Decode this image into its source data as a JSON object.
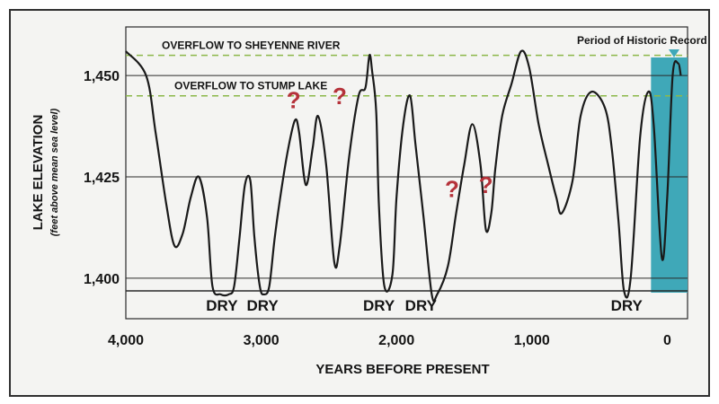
{
  "chart_data": {
    "type": "line",
    "xlabel": "YEARS BEFORE PRESENT",
    "ylabel": "LAKE ELEVATION",
    "ylabel_sub": "(feet above mean sea level)",
    "x_ticks": [
      "4,000",
      "3,000",
      "2,000",
      "1,000",
      "0"
    ],
    "x_tick_values": [
      4000,
      3000,
      2000,
      1000,
      0
    ],
    "y_ticks": [
      "1,450",
      "1,425",
      "1,400"
    ],
    "y_tick_values": [
      1450,
      1425,
      1400
    ],
    "xlim": [
      4000,
      -150
    ],
    "ylim": [
      1390,
      1462
    ],
    "grid": "horizontal",
    "reference_lines": [
      {
        "label": "OVERFLOW TO SHEYENNE RIVER",
        "y": 1455,
        "style": "dashed",
        "color": "#8cb84a"
      },
      {
        "label": "OVERFLOW TO STUMP LAKE",
        "y": 1445,
        "style": "dashed",
        "color": "#8cb84a"
      }
    ],
    "historic_record": {
      "label": "Period of Historic Record",
      "x_start": 120,
      "x_end": -150,
      "color": "#3fa8b8"
    },
    "dry_labels": [
      {
        "text": "DRY",
        "x": 3290
      },
      {
        "text": "DRY",
        "x": 2990
      },
      {
        "text": "DRY",
        "x": 2130
      },
      {
        "text": "DRY",
        "x": 1820
      },
      {
        "text": "DRY",
        "x": 300
      }
    ],
    "question_marks": [
      {
        "text": "?",
        "x": 2760,
        "y": 1442
      },
      {
        "text": "?",
        "x": 2420,
        "y": 1443
      },
      {
        "text": "?",
        "x": 1590,
        "y": 1420
      },
      {
        "text": "?",
        "x": 1340,
        "y": 1421
      }
    ],
    "series": [
      {
        "color": "#1a1a1a",
        "x": [
          4000,
          3850,
          3780,
          3700,
          3640,
          3580,
          3520,
          3460,
          3400,
          3360,
          3300,
          3240,
          3200,
          3160,
          3120,
          3080,
          3050,
          3010,
          2980,
          2940,
          2900,
          2850,
          2800,
          2750,
          2720,
          2670,
          2620,
          2580,
          2520,
          2460,
          2420,
          2350,
          2280,
          2230,
          2200,
          2180,
          2150,
          2130,
          2090,
          2030,
          2000,
          1950,
          1900,
          1860,
          1800,
          1740,
          1700,
          1620,
          1560,
          1500,
          1440,
          1380,
          1340,
          1300,
          1270,
          1220,
          1150,
          1080,
          1020,
          950,
          880,
          820,
          780,
          700,
          640,
          560,
          460,
          410,
          360,
          320,
          270,
          200,
          140,
          100,
          40,
          0,
          -40,
          -80,
          -100
        ],
        "y": [
          1456,
          1450,
          1436,
          1418,
          1408,
          1411,
          1420,
          1425,
          1415,
          1398,
          1396,
          1396,
          1398,
          1410,
          1423,
          1424,
          1410,
          1398,
          1396,
          1398,
          1410,
          1422,
          1432,
          1439,
          1436,
          1423,
          1432,
          1440,
          1428,
          1404,
          1408,
          1430,
          1445,
          1447,
          1455,
          1451,
          1441,
          1418,
          1398,
          1401,
          1420,
          1438,
          1445,
          1433,
          1415,
          1396,
          1396,
          1403,
          1416,
          1428,
          1438,
          1428,
          1412,
          1416,
          1427,
          1440,
          1448,
          1456,
          1452,
          1438,
          1428,
          1420,
          1416,
          1424,
          1440,
          1446,
          1442,
          1432,
          1414,
          1397,
          1400,
          1435,
          1446,
          1438,
          1405,
          1420,
          1450,
          1453,
          1450
        ]
      }
    ]
  }
}
